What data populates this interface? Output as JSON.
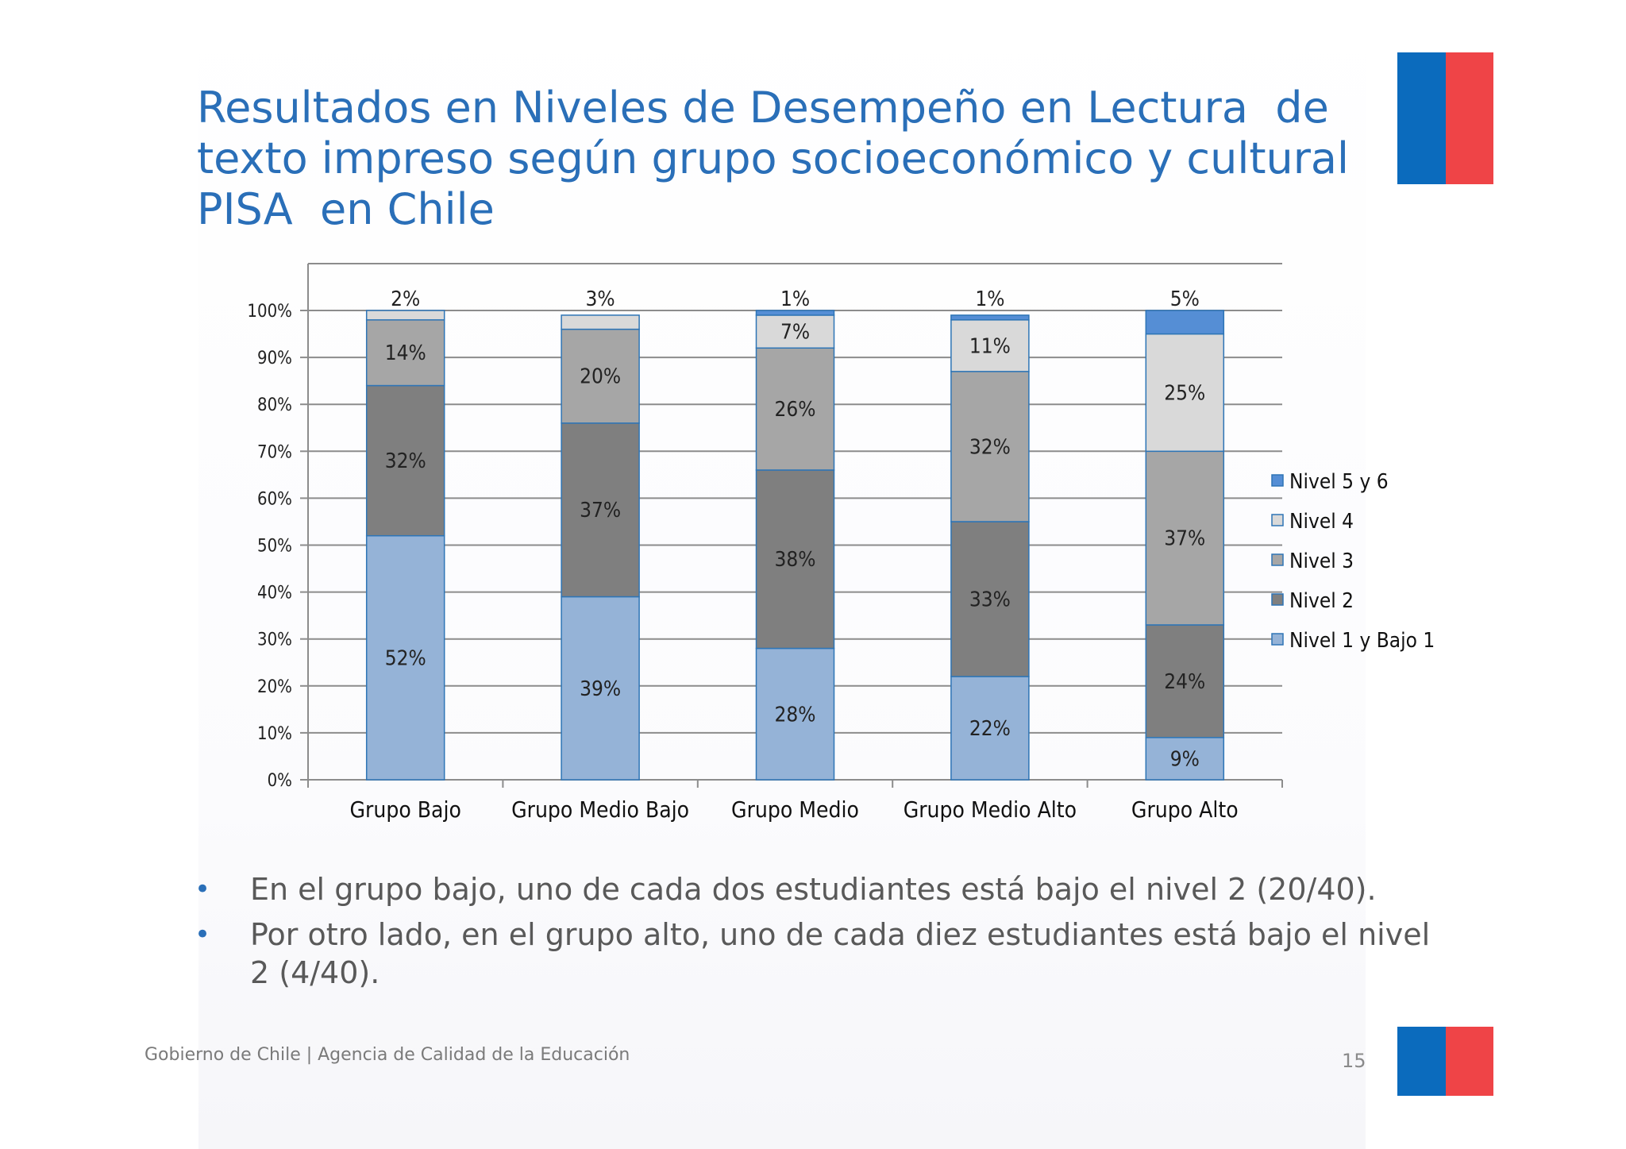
{
  "slide": {
    "title_lines": [
      "Resultados en Niveles de Desempeño en Lectura  de",
      "texto impreso según grupo socioeconómico y cultural",
      "PISA  en Chile"
    ],
    "bullets": [
      "En el grupo bajo, uno de cada dos estudiantes está bajo el nivel 2 (20/40).",
      "Por otro lado, en el grupo alto, uno de cada diez estudiantes está bajo el nivel 2 (4/40)."
    ],
    "bullet_symbol": "•",
    "footer": "Gobierno de Chile | Agencia de Calidad de la Educación",
    "page_number": "15",
    "flag_colors": {
      "blue": "#0b6bbd",
      "red": "#ef4447"
    }
  },
  "chart_data": {
    "type": "bar",
    "stacked": true,
    "orientation": "vertical",
    "categories": [
      "Grupo Bajo",
      "Grupo Medio Bajo",
      "Grupo Medio",
      "Grupo Medio Alto",
      "Grupo Alto"
    ],
    "series": [
      {
        "name": "Nivel 1 y Bajo 1",
        "values": [
          52,
          39,
          28,
          22,
          9
        ],
        "labels": [
          "52%",
          "39%",
          "28%",
          "22%",
          "9%"
        ],
        "color": "#95b3d7"
      },
      {
        "name": "Nivel 2",
        "values": [
          32,
          37,
          38,
          33,
          24
        ],
        "labels": [
          "32%",
          "37%",
          "38%",
          "33%",
          "24%"
        ],
        "color": "#7f7f7f"
      },
      {
        "name": "Nivel 3",
        "values": [
          14,
          20,
          26,
          32,
          37
        ],
        "labels": [
          "14%",
          "20%",
          "26%",
          "32%",
          "37%"
        ],
        "color": "#a6a6a6"
      },
      {
        "name": "Nivel 4",
        "values": [
          2,
          3,
          7,
          11,
          25
        ],
        "labels": [
          "2%",
          "3%",
          "7%",
          "11%",
          "25%"
        ],
        "color": "#d9d9d9"
      },
      {
        "name": "Nivel 5 y 6",
        "values": [
          0,
          0,
          1,
          1,
          5
        ],
        "labels": [
          "",
          "",
          "1%",
          "1%",
          "5%"
        ],
        "color": "#558ed5"
      }
    ],
    "yticks": [
      "0%",
      "10%",
      "20%",
      "30%",
      "40%",
      "50%",
      "60%",
      "70%",
      "80%",
      "90%",
      "100%"
    ],
    "ylim": [
      0,
      100
    ],
    "grid": true,
    "legend_position": "right",
    "legend_order": [
      "Nivel 5 y 6",
      "Nivel 4",
      "Nivel 3",
      "Nivel 2",
      "Nivel 1 y Bajo 1"
    ],
    "bar_outline": "#2e75b6"
  }
}
